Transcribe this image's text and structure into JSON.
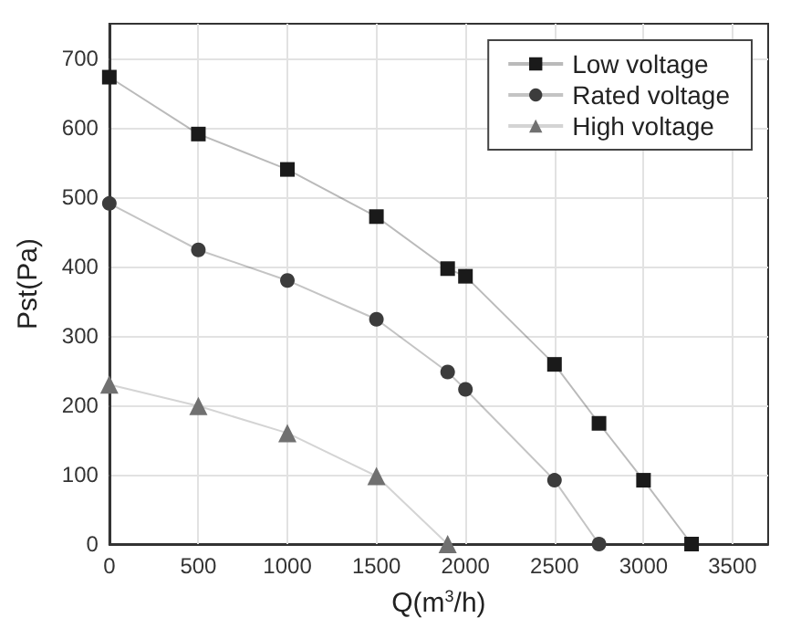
{
  "chart_data": {
    "type": "line",
    "xlabel": "Q(m$^{3}$/h)",
    "ylabel": "Pst(Pa)",
    "xlim": [
      0,
      3700
    ],
    "xticks": [
      0,
      500,
      1000,
      1500,
      2000,
      2500,
      3000,
      3500
    ],
    "ylim": [
      0,
      750
    ],
    "yticks": [
      0,
      100,
      200,
      300,
      400,
      500,
      600,
      700
    ],
    "grid": true,
    "legend": "top right",
    "series": [
      {
        "name": "Low voltage",
        "color": "#1a1a1a",
        "marker": "square",
        "x": [
          0,
          500,
          1000,
          1500,
          1900,
          2000,
          2500,
          2750,
          3000,
          3270
        ],
        "values": [
          673,
          591,
          540,
          472,
          397,
          386,
          259,
          174,
          92,
          0
        ]
      },
      {
        "name": "Rated voltage",
        "color": "#3c3c3c",
        "marker": "circle",
        "x": [
          0,
          500,
          1000,
          1500,
          1900,
          2000,
          2500,
          2750
        ],
        "values": [
          491,
          424,
          380,
          324,
          248,
          223,
          92,
          0
        ]
      },
      {
        "name": "High voltage",
        "color": "#707070",
        "marker": "triangle",
        "x": [
          0,
          500,
          1000,
          1500,
          1900
        ],
        "values": [
          230,
          199,
          160,
          98,
          0
        ]
      }
    ]
  }
}
